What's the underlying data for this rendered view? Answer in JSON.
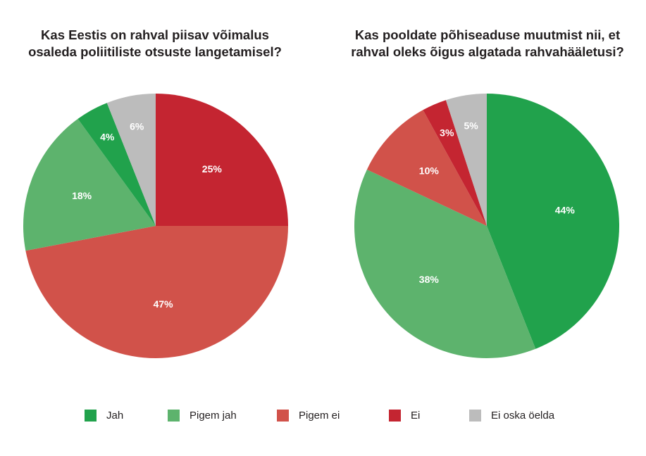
{
  "colors": {
    "jah": "#21a24c",
    "pigem_jah": "#5db36d",
    "pigem_ei": "#d1524a",
    "ei": "#c42531",
    "ei_oska": "#bcbcbc"
  },
  "chart_data": [
    {
      "type": "pie",
      "title": "Kas Eestis on rahval piisav võimalus\nosaleda poliitiliste otsuste langetamisel?",
      "slices": [
        {
          "key": "ei",
          "label": "Ei",
          "value": 25,
          "display": "25%"
        },
        {
          "key": "pigem_ei",
          "label": "Pigem ei",
          "value": 47,
          "display": "47%"
        },
        {
          "key": "pigem_jah",
          "label": "Pigem jah",
          "value": 18,
          "display": "18%"
        },
        {
          "key": "jah",
          "label": "Jah",
          "value": 4,
          "display": "4%"
        },
        {
          "key": "ei_oska",
          "label": "Ei oska öelda",
          "value": 6,
          "display": "6%"
        }
      ]
    },
    {
      "type": "pie",
      "title": "Kas pooldate põhiseaduse muutmist nii, et\nrahval oleks õigus algatada rahvahääletusi?",
      "slices": [
        {
          "key": "jah",
          "label": "Jah",
          "value": 44,
          "display": "44%"
        },
        {
          "key": "pigem_jah",
          "label": "Pigem jah",
          "value": 38,
          "display": "38%"
        },
        {
          "key": "pigem_ei",
          "label": "Pigem ei",
          "value": 10,
          "display": "10%"
        },
        {
          "key": "ei",
          "label": "Ei",
          "value": 3,
          "display": "3%"
        },
        {
          "key": "ei_oska",
          "label": "Ei oska öelda",
          "value": 5,
          "display": "5%"
        }
      ]
    }
  ],
  "legend": [
    {
      "key": "jah",
      "label": "Jah"
    },
    {
      "key": "pigem_jah",
      "label": "Pigem jah"
    },
    {
      "key": "pigem_ei",
      "label": "Pigem ei"
    },
    {
      "key": "ei",
      "label": "Ei"
    },
    {
      "key": "ei_oska",
      "label": "Ei oska öelda"
    }
  ]
}
